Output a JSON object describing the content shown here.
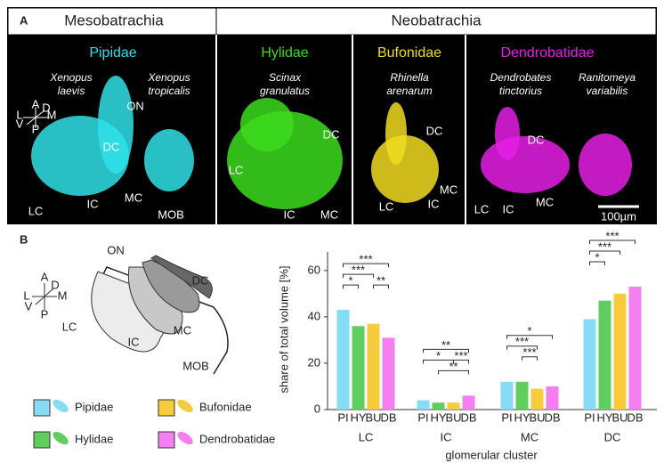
{
  "panel_a": {
    "label": "A",
    "groups": [
      "Mesobatrachia",
      "Neobatrachia"
    ],
    "images": [
      {
        "family": "Pipidae",
        "color": "#2fe0e8",
        "species": [
          [
            "Xenopus",
            "laevis"
          ],
          [
            "Xenopus",
            "tropicalis"
          ]
        ],
        "regions": [
          "ON",
          "DC",
          "LC",
          "IC",
          "MC",
          "MOB"
        ]
      },
      {
        "family": "Hylidae",
        "color": "#3cdc1e",
        "species": [
          [
            "Scinax",
            "granulatus"
          ]
        ],
        "regions": [
          "DC",
          "LC",
          "IC",
          "MC"
        ]
      },
      {
        "family": "Bufonidae",
        "color": "#f0dc1e",
        "species": [
          [
            "Rhinella",
            "arenarum"
          ]
        ],
        "regions": [
          "DC",
          "LC",
          "IC",
          "MC"
        ]
      },
      {
        "family": "Dendrobatidae",
        "color": "#e61ee6",
        "species": [
          [
            "Dendrobates",
            "tinctorius"
          ],
          [
            "Ranitomeya",
            "variabilis"
          ]
        ],
        "regions": [
          "DC",
          "LC",
          "IC",
          "MC"
        ]
      }
    ],
    "compass": [
      "A",
      "D",
      "L",
      "M",
      "V",
      "P"
    ],
    "scale_bar": "100µm"
  },
  "panel_b": {
    "label": "B",
    "compass": [
      "A",
      "D",
      "L",
      "M",
      "V",
      "P"
    ],
    "schematic": [
      "ON",
      "DC",
      "LC",
      "MC",
      "IC",
      "MOB"
    ]
  },
  "chart_data": {
    "type": "bar",
    "y_label": "share of total volume [%]",
    "x_label": "glomerular cluster",
    "categories": [
      "LC",
      "IC",
      "MC",
      "DC"
    ],
    "series": [
      {
        "name": "Pipidae",
        "short": "PI",
        "color": "#86dcf5",
        "values": [
          43,
          4,
          12,
          39
        ]
      },
      {
        "name": "Hylidae",
        "short": "HY",
        "color": "#5fce5f",
        "values": [
          36,
          3,
          12,
          47
        ]
      },
      {
        "name": "Bufonidae",
        "short": "BU",
        "color": "#f7cc3c",
        "values": [
          37,
          3,
          9,
          50
        ]
      },
      {
        "name": "Dendrobatidae",
        "short": "DB",
        "color": "#f57ef0",
        "values": [
          31,
          6,
          10,
          53
        ]
      }
    ],
    "ylim": [
      0,
      68
    ],
    "yticks": [
      0,
      20,
      40,
      60
    ],
    "significance": [
      {
        "category": 0,
        "from": 0,
        "to": 1,
        "label": "*"
      },
      {
        "category": 0,
        "from": 0,
        "to": 2,
        "label": "***"
      },
      {
        "category": 0,
        "from": 2,
        "to": 3,
        "label": "**"
      },
      {
        "category": 0,
        "from": 0,
        "to": 3,
        "label": "***"
      },
      {
        "category": 1,
        "from": 1,
        "to": 3,
        "label": "**"
      },
      {
        "category": 1,
        "from": 0,
        "to": 2,
        "label": "*"
      },
      {
        "category": 1,
        "from": 2,
        "to": 3,
        "label": "***"
      },
      {
        "category": 1,
        "from": 0,
        "to": 3,
        "label": "**"
      },
      {
        "category": 2,
        "from": 1,
        "to": 2,
        "label": "***"
      },
      {
        "category": 2,
        "from": 0,
        "to": 2,
        "label": "***"
      },
      {
        "category": 2,
        "from": 0,
        "to": 3,
        "label": "*"
      },
      {
        "category": 3,
        "from": 0,
        "to": 1,
        "label": "*"
      },
      {
        "category": 3,
        "from": 0,
        "to": 2,
        "label": "***"
      },
      {
        "category": 3,
        "from": 0,
        "to": 3,
        "label": "***"
      }
    ]
  }
}
